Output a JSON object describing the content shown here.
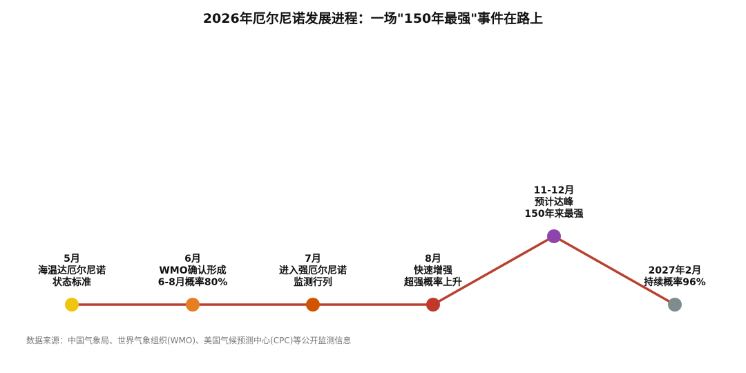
{
  "chart_data": {
    "type": "line",
    "title": "2026年厄尔尼诺发展进程：一场\"150年最强\"事件在路上",
    "series_color": "#b94030",
    "events": [
      {
        "month": "5月",
        "lines": [
          "海温达厄尔尼诺",
          "状态标准"
        ],
        "level": 0,
        "color": "#f1c40f"
      },
      {
        "month": "6月",
        "lines": [
          "WMO确认形成",
          "6-8月概率80%"
        ],
        "level": 0,
        "color": "#e67e22"
      },
      {
        "month": "7月",
        "lines": [
          "进入强厄尔尼诺",
          "监测行列"
        ],
        "level": 0,
        "color": "#d35400"
      },
      {
        "month": "8月",
        "lines": [
          "快速增强",
          "超强概率上升"
        ],
        "level": 0,
        "color": "#c0392b"
      },
      {
        "month": "11-12月",
        "lines": [
          "预计达峰",
          "150年来最强"
        ],
        "level": 1,
        "color": "#8e44ad"
      },
      {
        "month": "2027年2月",
        "lines": [
          "持续概率96%"
        ],
        "level": 0,
        "color": "#7f8c8d"
      }
    ]
  },
  "footer": {
    "source": "数据来源：中国气象局、世界气象组织(WMO)、美国气候预测中心(CPC)等公开监测信息"
  }
}
